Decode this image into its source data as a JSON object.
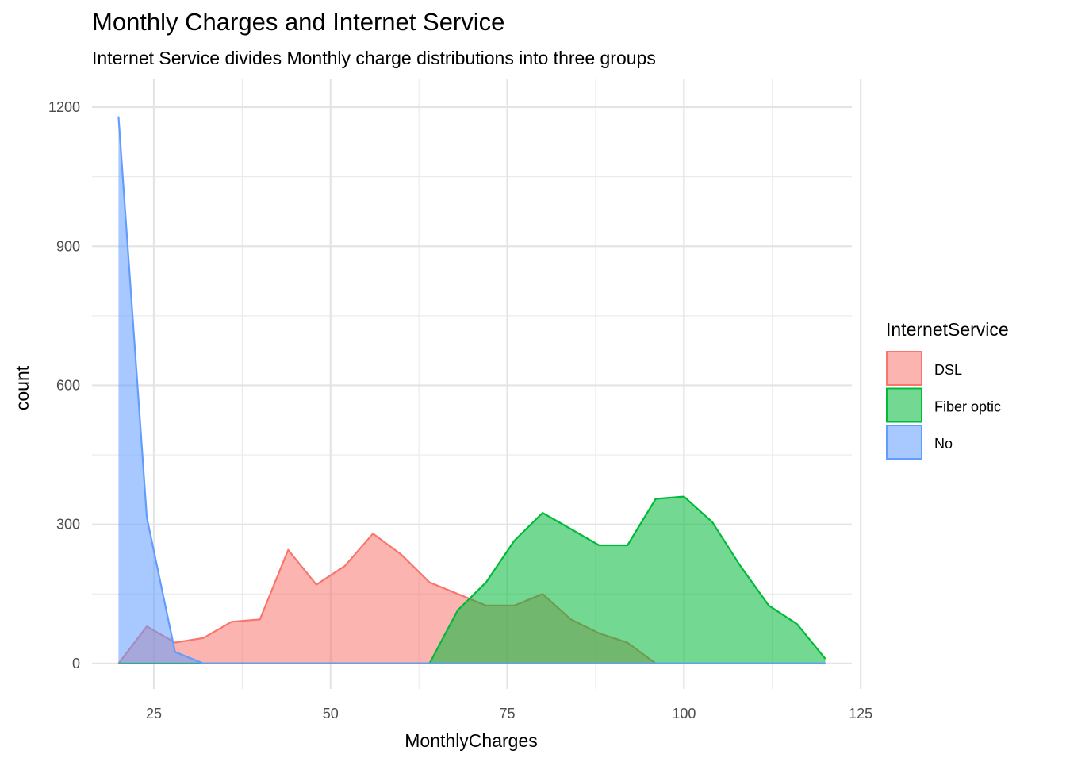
{
  "chart_data": {
    "type": "area",
    "title": "Monthly Charges and Internet Service",
    "subtitle": "Internet Service divides Monthly charge distributions into three groups",
    "xlabel": "MonthlyCharges",
    "ylabel": "count",
    "xlim": [
      16.25,
      123.75
    ],
    "ylim": [
      -55,
      1260
    ],
    "xticks": [
      25,
      50,
      75,
      100,
      125
    ],
    "yticks": [
      0,
      300,
      600,
      900,
      1200
    ],
    "x_tick_labels": [
      "25",
      "50",
      "75",
      "100",
      "125"
    ],
    "y_tick_labels": [
      "0",
      "300",
      "600",
      "900",
      "1200"
    ],
    "grid": true,
    "legend": {
      "title": "InternetService",
      "position": "right"
    },
    "x": [
      20,
      24,
      28,
      32,
      36,
      40,
      44,
      48,
      52,
      56,
      60,
      64,
      68,
      72,
      76,
      80,
      84,
      88,
      92,
      96,
      100,
      104,
      108,
      112,
      116,
      120
    ],
    "series": [
      {
        "name": "DSL",
        "color": "#F8766D",
        "values": [
          0,
          80,
          45,
          55,
          90,
          95,
          245,
          170,
          210,
          280,
          235,
          175,
          150,
          125,
          125,
          150,
          95,
          65,
          45,
          0,
          0,
          0,
          0,
          0,
          0,
          0
        ]
      },
      {
        "name": "Fiber optic",
        "color": "#00BA38",
        "values": [
          0,
          0,
          0,
          0,
          0,
          0,
          0,
          0,
          0,
          0,
          0,
          0,
          115,
          175,
          265,
          325,
          290,
          255,
          255,
          355,
          360,
          305,
          210,
          125,
          85,
          10
        ]
      },
      {
        "name": "No",
        "color": "#619CFF",
        "values": [
          1180,
          315,
          25,
          0,
          0,
          0,
          0,
          0,
          0,
          0,
          0,
          0,
          0,
          0,
          0,
          0,
          0,
          0,
          0,
          0,
          0,
          0,
          0,
          0,
          0,
          0
        ]
      }
    ]
  }
}
